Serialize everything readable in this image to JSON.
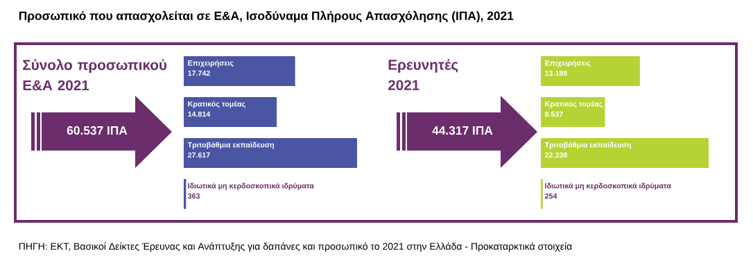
{
  "chart_data": [
    {
      "type": "bar",
      "orientation": "horizontal",
      "title": "Προσωπικό που απασχολείται σε Ε&Α, Ισοδύναμα Πλήρους Απασχόλησης (ΙΠΑ), 2021",
      "subtitle": "Σύνολο προσωπικού Ε&Α 2021",
      "categories": [
        "Επιχειρήσεις",
        "Κρατικός τομέας",
        "Τριτοβάθμια εκπαίδευση",
        "Ιδιωτικά μη κερδοσκοπικά ιδρύματα"
      ],
      "values": [
        17742,
        14814,
        27617,
        363
      ],
      "value_labels": [
        "17.742",
        "14.814",
        "27.617",
        "363"
      ],
      "color": "#4a55a3",
      "annotations": [
        "60.537 ΙΠΑ"
      ]
    },
    {
      "type": "bar",
      "orientation": "horizontal",
      "subtitle": "Ερευνητές 2021",
      "categories": [
        "Επιχειρήσεις",
        "Κρατικός τομέας",
        "Τριτοβάθμια εκπαίδευση",
        "Ιδιωτικά μη κερδοσκοπικά ιδρύματα"
      ],
      "values": [
        13188,
        8537,
        22338,
        254
      ],
      "value_labels": [
        "13.188",
        "8.537",
        "22.338",
        "254"
      ],
      "color": "#b5d334",
      "annotations": [
        "44.317 ΙΠΑ",
        "ΠΗΓΗ: ΕΚΤ, Βασικοί Δείκτες Έρευνας και Ανάπτυξης για δαπάνες και προσωπικό το 2021 στην Ελλάδα - Προκαταρκτικά στοιχεία"
      ]
    }
  ]
}
